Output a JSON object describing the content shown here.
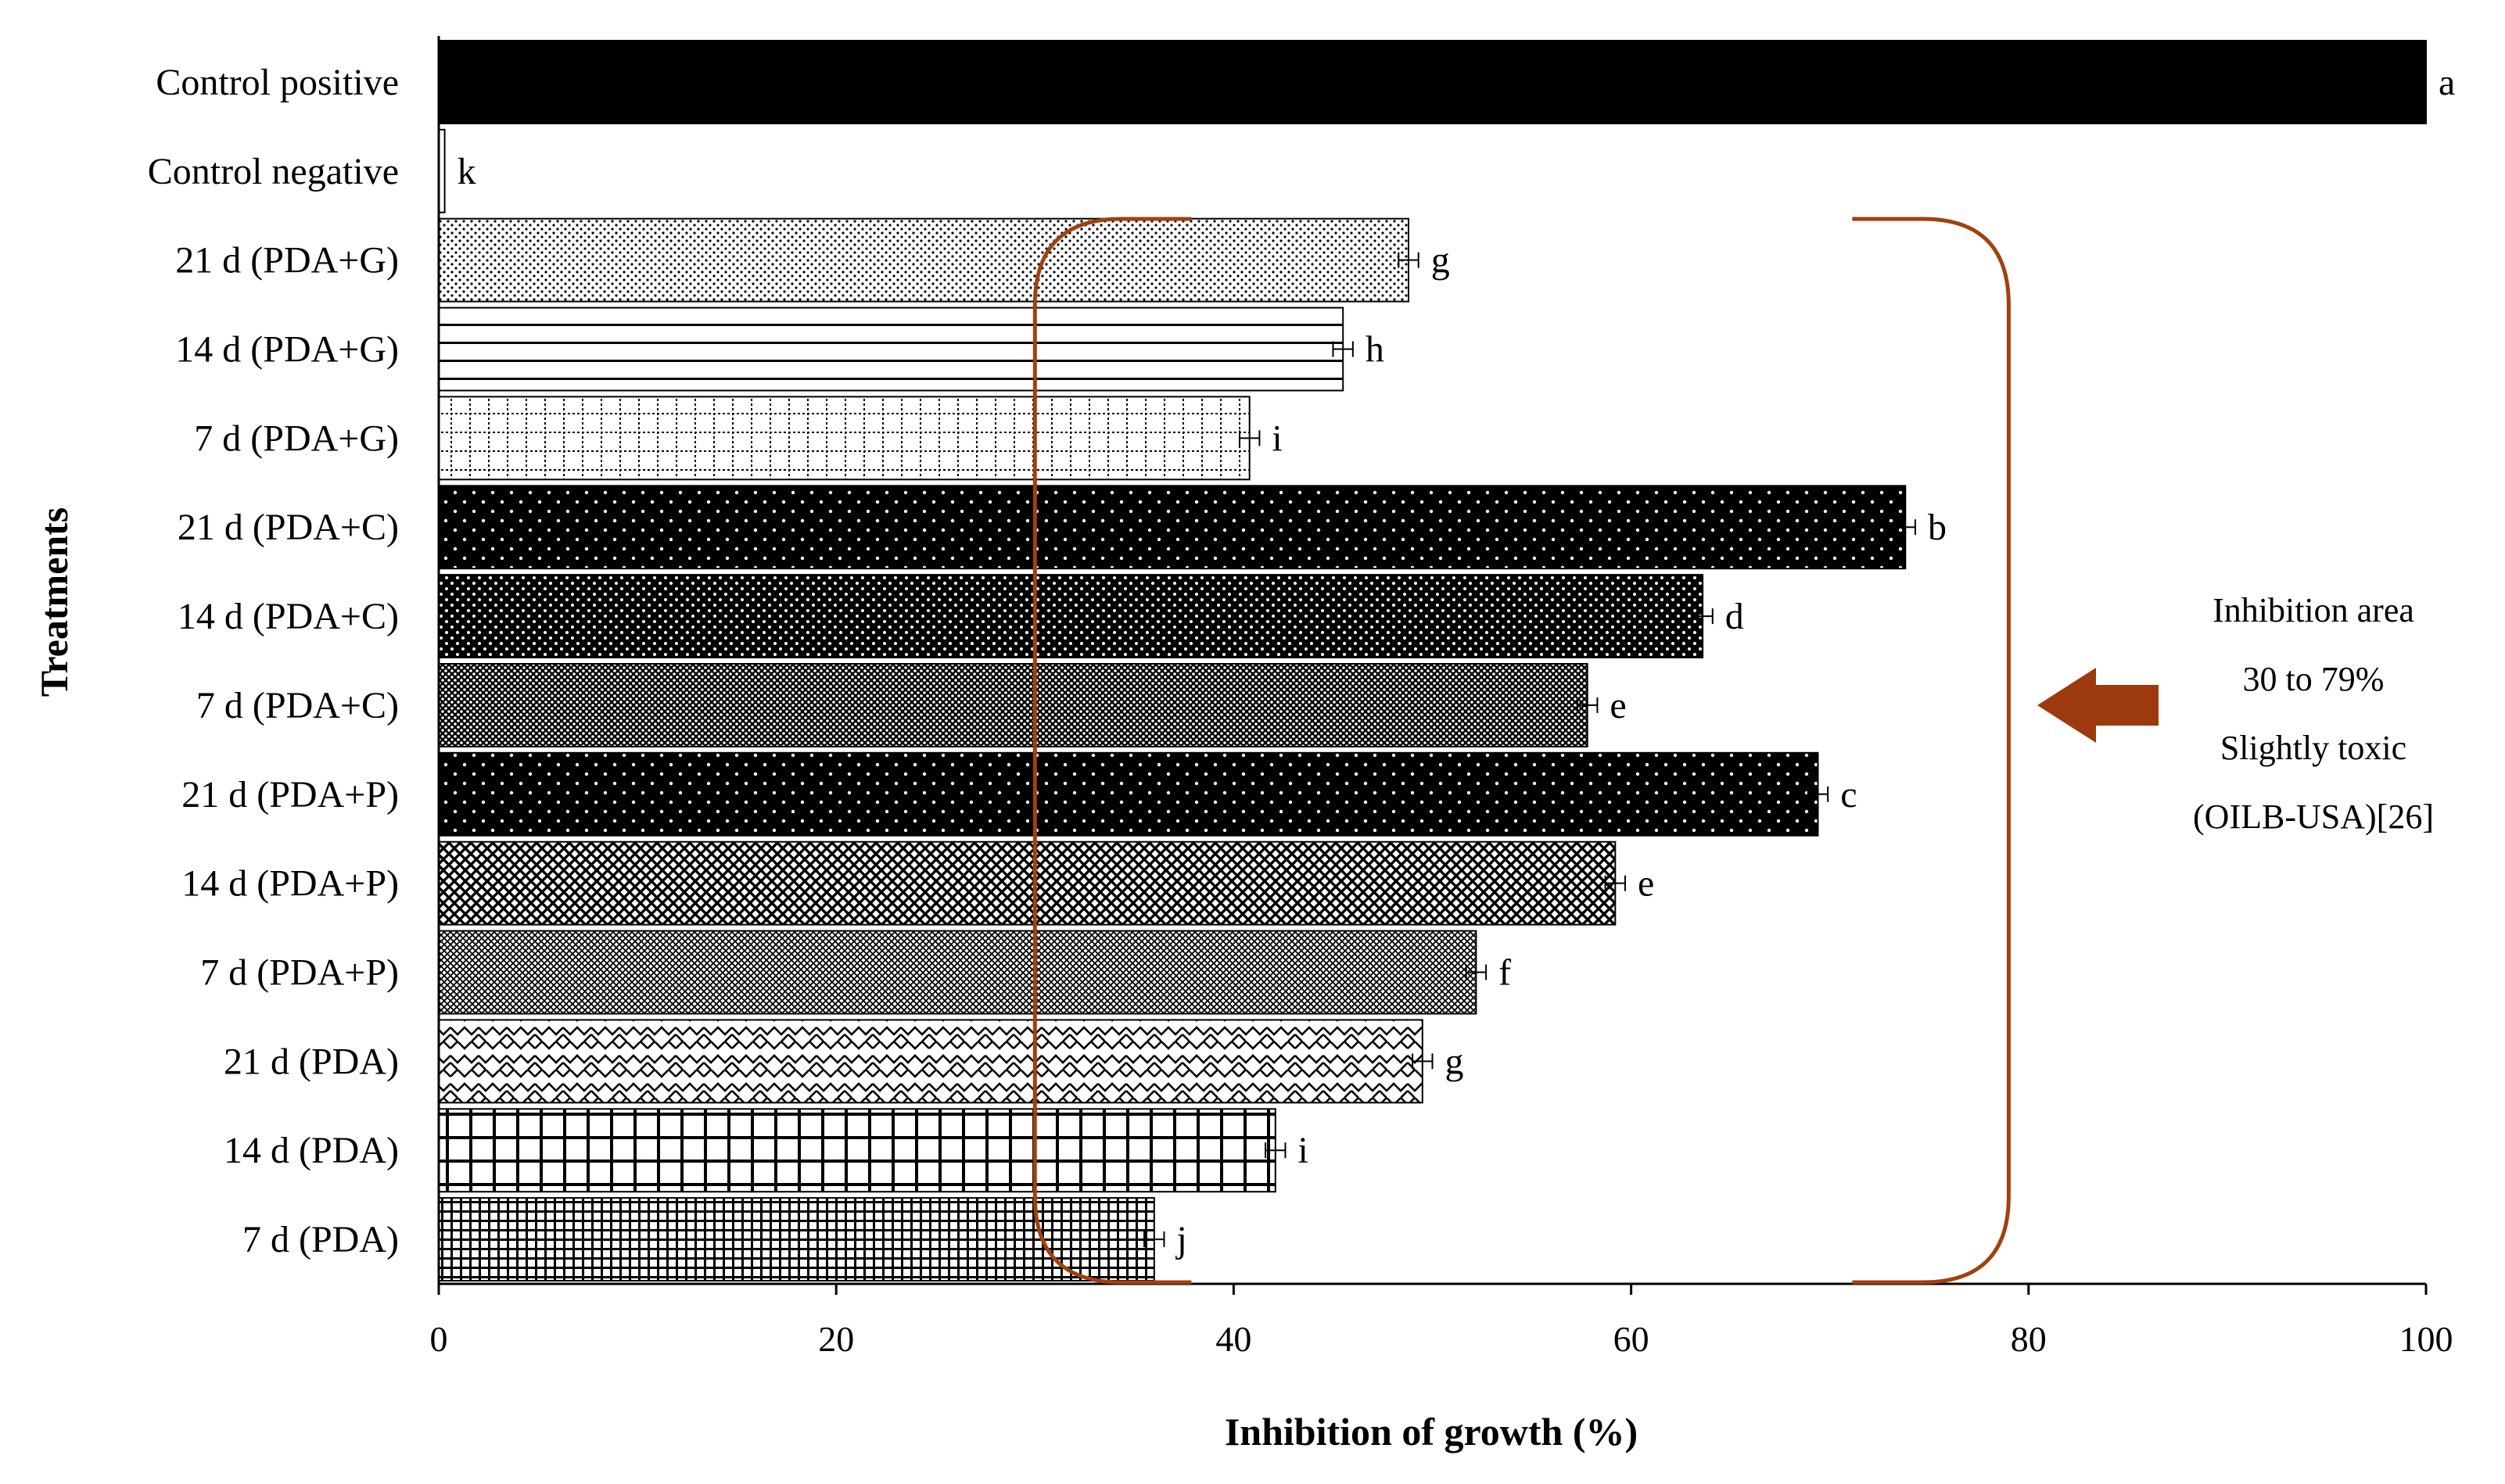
{
  "chart_data": {
    "type": "bar",
    "orientation": "horizontal",
    "title": "",
    "xlabel": "Inhibition of growth (%)",
    "ylabel": "Treatments",
    "xlim": [
      0,
      100
    ],
    "xticks": [
      0,
      20,
      40,
      60,
      80,
      100
    ],
    "categories": [
      "Control positive",
      "Control negative",
      "21 d (PDA+G)",
      "14 d (PDA+G)",
      "7 d (PDA+G)",
      "21 d (PDA+C)",
      "14 d (PDA+C)",
      "7 d (PDA+C)",
      "21 d (PDA+P)",
      "14 d (PDA+P)",
      "7 d (PDA+P)",
      "21 d (PDA)",
      "14 d (PDA)",
      "7 d (PDA)"
    ],
    "values": [
      100,
      0.3,
      48.8,
      45.5,
      40.8,
      73.8,
      63.6,
      57.8,
      69.4,
      59.2,
      52.2,
      49.5,
      42.1,
      36.0
    ],
    "error_bars": [
      0,
      0,
      0.5,
      0.5,
      0.5,
      0.5,
      0.5,
      0.5,
      0.5,
      0.5,
      0.5,
      0.5,
      0.5,
      0.5
    ],
    "significance_letters": [
      "a",
      "k",
      "g",
      "h",
      "i",
      "b",
      "d",
      "e",
      "c",
      "e",
      "f",
      "g",
      "i",
      "j"
    ],
    "patterns": [
      "solid",
      "white",
      "fine-dots",
      "h-lines",
      "dashed-grid",
      "black-white-dots",
      "black-dense-dots",
      "gray-dots",
      "black-white-dots",
      "crosshatch",
      "fine-crosshatch",
      "zigzag",
      "grid-large",
      "grid-small"
    ],
    "inhibition_region": [
      30,
      79
    ],
    "annotation": {
      "lines": [
        "Inhibition area",
        "30 to 79%",
        "Slightly toxic",
        "(OILB-USA)[26]"
      ]
    },
    "colors": {
      "bracket": "#A0410F",
      "arrow": "#9C3A0E",
      "bars": "#000000"
    }
  }
}
